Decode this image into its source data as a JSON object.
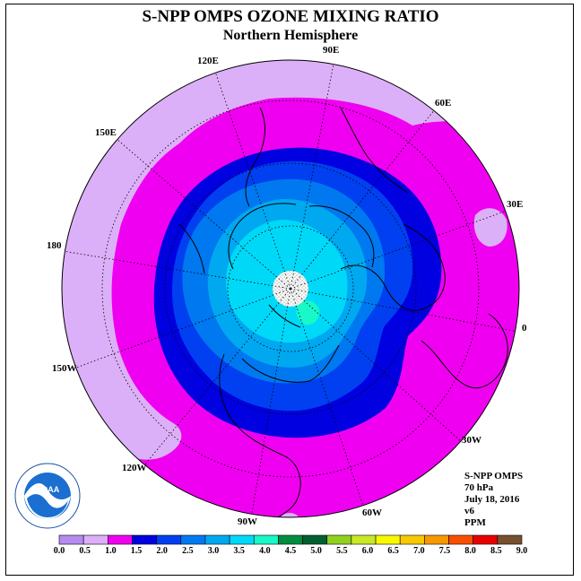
{
  "title": "S-NPP OMPS OZONE MIXING RATIO",
  "subtitle": "Northern Hemisphere",
  "longitude_labels": [
    "90E",
    "60E",
    "30E",
    "0",
    "30W",
    "60W",
    "90W",
    "120W",
    "150W",
    "180",
    "150E",
    "120E"
  ],
  "info": {
    "instrument": "S-NPP OMPS",
    "pressure": "70 hPa",
    "date": "July 18, 2016",
    "version": "v6",
    "units": "PPM"
  },
  "logo": {
    "text": "NOAA"
  },
  "colorbar": {
    "ticks": [
      "0.0",
      "0.5",
      "1.0",
      "1.5",
      "2.0",
      "2.5",
      "3.0",
      "3.5",
      "4.0",
      "4.5",
      "5.0",
      "5.5",
      "6.0",
      "6.5",
      "7.0",
      "7.5",
      "8.0",
      "8.5",
      "9.0"
    ],
    "colors": [
      "#b58bf0",
      "#dcb0f8",
      "#f000f0",
      "#0000e0",
      "#0040f0",
      "#0078f0",
      "#00a8f0",
      "#00d8f8",
      "#18f8c8",
      "#008c40",
      "#006030",
      "#90d020",
      "#c8e828",
      "#f8f800",
      "#f8c800",
      "#f89800",
      "#f85000",
      "#e80000",
      "#785030"
    ]
  }
}
